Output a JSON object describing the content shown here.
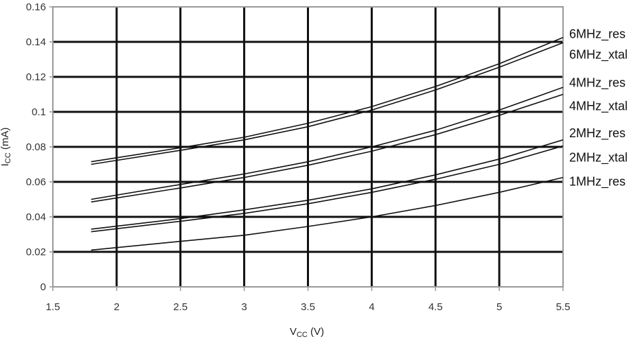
{
  "chart_data": {
    "type": "line",
    "title": "",
    "xlabel": {
      "main": "V",
      "sub": "CC",
      "unit": " (V)"
    },
    "ylabel": {
      "main": "I",
      "sub": "CC",
      "unit": " (mA)"
    },
    "xlim": [
      1.5,
      5.5
    ],
    "ylim": [
      0,
      0.16
    ],
    "xticks": [
      "1.5",
      "2",
      "2.5",
      "3",
      "3.5",
      "4",
      "4.5",
      "5",
      "5.5"
    ],
    "yticks": [
      "0",
      "0.02",
      "0.04",
      "0.06",
      "0.08",
      "0.1",
      "0.12",
      "0.14",
      "0.16"
    ],
    "xtick_values": [
      1.5,
      2,
      2.5,
      3,
      3.5,
      4,
      4.5,
      5,
      5.5
    ],
    "ytick_values": [
      0,
      0.02,
      0.04,
      0.06,
      0.08,
      0.1,
      0.12,
      0.14,
      0.16
    ],
    "grid": true,
    "legend_placement": "right",
    "colors": {
      "line": "#111111",
      "grid": "#111111",
      "frame": "#999999"
    },
    "x": [
      1.8,
      2.5,
      3.0,
      3.5,
      4.0,
      4.5,
      5.0,
      5.5
    ],
    "series": [
      {
        "name": "6MHz_res",
        "values": [
          0.0715,
          0.0795,
          0.0855,
          0.0935,
          0.103,
          0.1145,
          0.1275,
          0.1425
        ]
      },
      {
        "name": "6MHz_xtal",
        "values": [
          0.07,
          0.078,
          0.084,
          0.0915,
          0.101,
          0.1125,
          0.1255,
          0.1395
        ]
      },
      {
        "name": "4MHz_res",
        "values": [
          0.05,
          0.0585,
          0.0645,
          0.0715,
          0.08,
          0.0895,
          0.101,
          0.114
        ]
      },
      {
        "name": "4MHz_xtal",
        "values": [
          0.0485,
          0.0565,
          0.0625,
          0.0695,
          0.0775,
          0.087,
          0.098,
          0.11
        ]
      },
      {
        "name": "2MHz_res",
        "values": [
          0.033,
          0.039,
          0.044,
          0.0495,
          0.056,
          0.064,
          0.073,
          0.084
        ]
      },
      {
        "name": "2MHz_xtal",
        "values": [
          0.0315,
          0.0375,
          0.042,
          0.0475,
          0.054,
          0.0615,
          0.07,
          0.0805
        ]
      },
      {
        "name": "1MHz_res",
        "values": [
          0.021,
          0.026,
          0.0295,
          0.0345,
          0.04,
          0.0465,
          0.054,
          0.0625
        ]
      }
    ]
  }
}
